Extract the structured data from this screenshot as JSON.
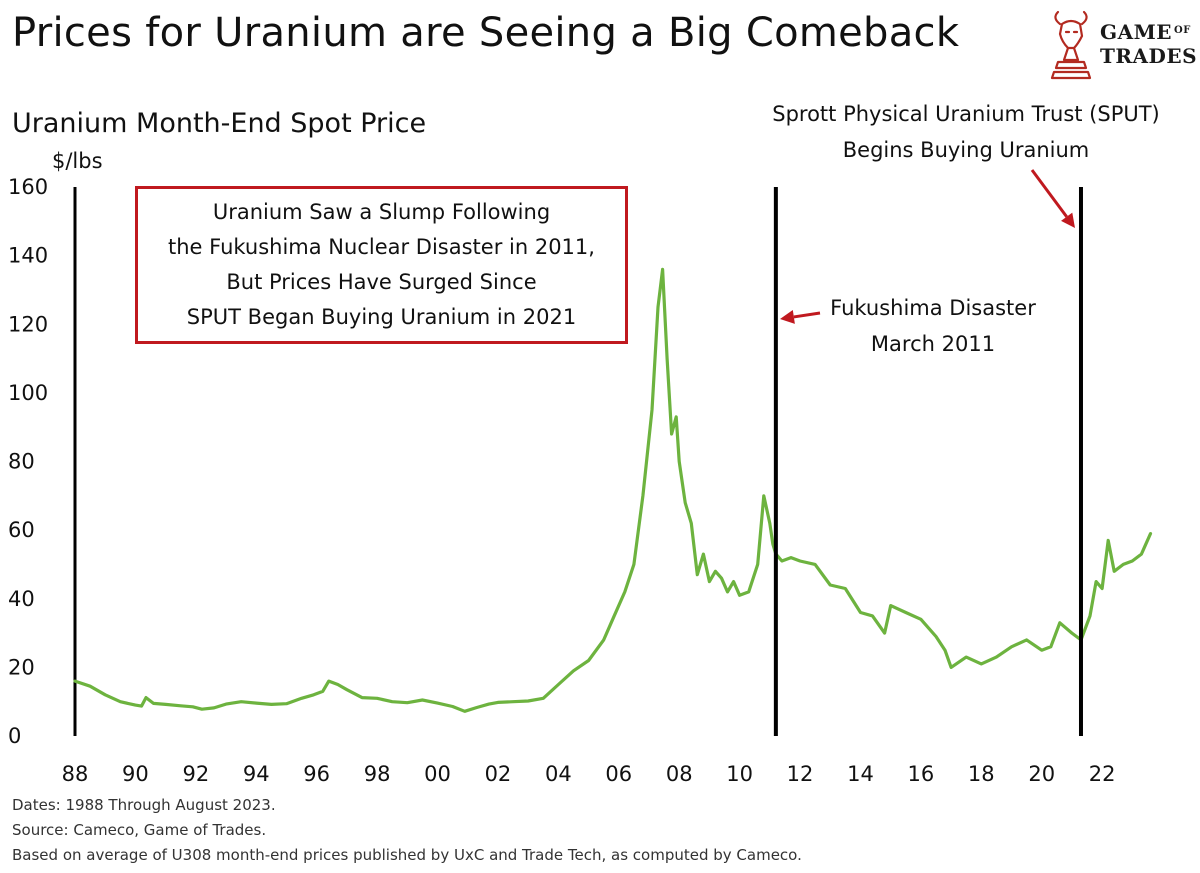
{
  "header": {
    "title": "Prices for Uranium are Seeing a Big Comeback",
    "brand_line1": "Game",
    "brand_of": "of",
    "brand_line2": "Trades"
  },
  "chart_data": {
    "type": "line",
    "title": "Uranium Month-End Spot Price",
    "ylabel": "$/lbs",
    "xlabel": "",
    "ylim": [
      0,
      160
    ],
    "xlim": [
      1988.0,
      2023.75
    ],
    "yticks": [
      "0",
      "20",
      "40",
      "60",
      "80",
      "100",
      "120",
      "140",
      "160"
    ],
    "yticks_values": [
      0,
      20,
      40,
      60,
      80,
      100,
      120,
      140,
      160
    ],
    "xticks": [
      "88",
      "90",
      "92",
      "94",
      "96",
      "98",
      "00",
      "02",
      "04",
      "06",
      "08",
      "10",
      "12",
      "14",
      "16",
      "18",
      "20",
      "22"
    ],
    "xticks_values": [
      1988,
      1990,
      1992,
      1994,
      1996,
      1998,
      2000,
      2002,
      2004,
      2006,
      2008,
      2010,
      2012,
      2014,
      2016,
      2018,
      2020,
      2022
    ],
    "grid": false,
    "line_color": "#6db33f",
    "series": [
      {
        "name": "Uranium Month-End Spot Price",
        "x": [
          1988.0,
          1988.5,
          1989.0,
          1989.5,
          1990.0,
          1990.2,
          1990.35,
          1990.6,
          1991.0,
          1991.5,
          1991.9,
          1992.2,
          1992.6,
          1993.0,
          1993.5,
          1994.0,
          1994.5,
          1995.0,
          1995.5,
          1995.9,
          1996.2,
          1996.4,
          1996.7,
          1997.0,
          1997.5,
          1998.0,
          1998.5,
          1999.0,
          1999.5,
          2000.0,
          2000.5,
          2000.9,
          2001.3,
          2001.7,
          2002.0,
          2002.5,
          2003.0,
          2003.5,
          2004.0,
          2004.5,
          2005.0,
          2005.5,
          2005.8,
          2006.2,
          2006.5,
          2006.8,
          2007.1,
          2007.3,
          2007.45,
          2007.6,
          2007.75,
          2007.9,
          2008.0,
          2008.2,
          2008.4,
          2008.6,
          2008.8,
          2009.0,
          2009.2,
          2009.4,
          2009.6,
          2009.8,
          2010.0,
          2010.3,
          2010.6,
          2010.8,
          2011.0,
          2011.1,
          2011.2,
          2011.4,
          2011.7,
          2012.0,
          2012.5,
          2013.0,
          2013.5,
          2014.0,
          2014.4,
          2014.8,
          2015.0,
          2015.5,
          2016.0,
          2016.5,
          2016.8,
          2017.0,
          2017.5,
          2018.0,
          2018.5,
          2019.0,
          2019.5,
          2020.0,
          2020.3,
          2020.6,
          2021.0,
          2021.3,
          2021.6,
          2021.8,
          2022.0,
          2022.2,
          2022.4,
          2022.7,
          2023.0,
          2023.3,
          2023.6
        ]
      },
      {
        "name": "values",
        "values": [
          16,
          14.5,
          12,
          10,
          9,
          8.7,
          11.2,
          9.5,
          9.2,
          8.8,
          8.5,
          7.8,
          8.2,
          9.3,
          10,
          9.6,
          9.2,
          9.4,
          11,
          12,
          13,
          16,
          15,
          13.5,
          11.2,
          11,
          10,
          9.7,
          10.5,
          9.6,
          8.6,
          7.2,
          8.3,
          9.3,
          9.8,
          10,
          10.2,
          11,
          15,
          19,
          22,
          28,
          34,
          42,
          50,
          70,
          95,
          125,
          136,
          110,
          88,
          93,
          80,
          68,
          62,
          47,
          53,
          45,
          48,
          46,
          42,
          45,
          41,
          42,
          50,
          70,
          62,
          56,
          53,
          51,
          52,
          51,
          50,
          44,
          43,
          36,
          35,
          30,
          38,
          36,
          34,
          29,
          25,
          20,
          23,
          21,
          23,
          26,
          28,
          25,
          26,
          33,
          30,
          28,
          35,
          45,
          43,
          57,
          48,
          50,
          51,
          53,
          59
        ]
      }
    ],
    "vertical_markers": [
      {
        "x": 2011.2,
        "label": "Fukushima Disaster"
      },
      {
        "x": 2021.3,
        "label": "SPUT Begins Buying"
      }
    ]
  },
  "annotations": {
    "callout_lines": [
      "Uranium Saw a Slump Following",
      "the Fukushima Nuclear Disaster in 2011,",
      "But Prices Have Surged Since",
      "SPUT Began Buying Uranium in 2021"
    ],
    "fukushima_line1": "Fukushima Disaster",
    "fukushima_line2": "March 2011",
    "sput_line1": "Sprott Physical Uranium Trust (SPUT)",
    "sput_line2": "Begins Buying Uranium",
    "arrow_color": "#c0191f"
  },
  "footer": {
    "line1": "Dates: 1988 Through August 2023.",
    "line2": "Source: Cameco, Game of Trades.",
    "line3": "Based on average of U308 month-end prices published by UxC and Trade Tech, as computed by Cameco."
  }
}
